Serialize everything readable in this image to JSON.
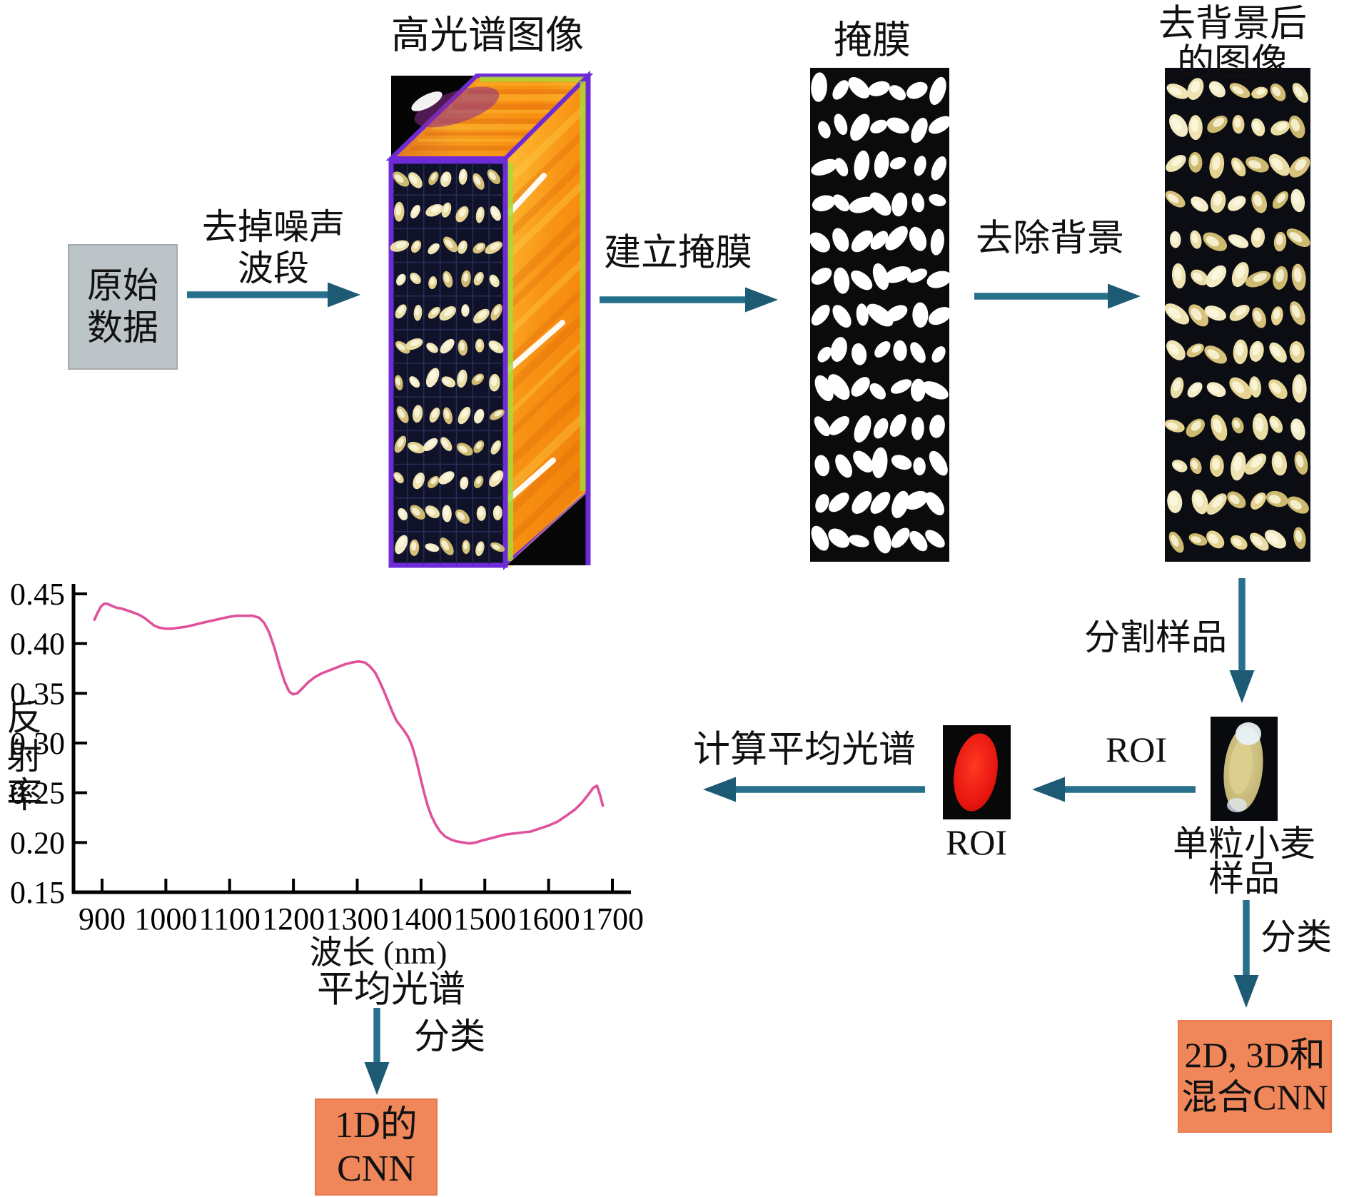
{
  "colors": {
    "arrow": "#27708c",
    "arrow_dark": "#1d5a74",
    "curve": "#e0519b",
    "orange_box": "#f0875a",
    "gray_box": "#bdc4c7",
    "purple_edge": "#6d2bd8",
    "green_edge": "#a8dc35",
    "roi_red": "#e81610",
    "mask_bg": "#0b0b0b",
    "strip_bg": "#0c0d12"
  },
  "flow": {
    "raw_data": {
      "line1": "原始",
      "line2": "数据"
    },
    "remove_noise": {
      "line1": "去掉噪声",
      "line2": "波段"
    },
    "hyperspectral_title": "高光谱图像",
    "build_mask": "建立掩膜",
    "mask_title": "掩膜",
    "remove_background": "去除背景",
    "clean_title": {
      "line1": "去背景后",
      "line2": "的图像"
    },
    "segment": "分割样品",
    "single_grain": {
      "line1": "单粒小麦",
      "line2": "样品"
    },
    "roi_arrow_label": "ROI",
    "roi_caption": "ROI",
    "avg_spectrum_arrow": "计算平均光谱",
    "avg_spectrum_caption": "平均光谱",
    "classify_left": "分类",
    "classify_right": "分类",
    "cnn_1d": {
      "line1": "1D的",
      "line2": "CNN"
    },
    "cnn_2d3d": {
      "line1": "2D, 3D和",
      "line2": "混合CNN"
    }
  },
  "figures": {
    "hyperspectral_cube": {
      "grain_rows": 12,
      "grain_cols": 7
    },
    "mask": {
      "rows": 13,
      "cols": 7
    },
    "background_removed": {
      "rows": 13,
      "cols": 7
    }
  },
  "chart_data": {
    "type": "line",
    "title": "",
    "xlabel": "波长 (nm)",
    "ylabel": "反射率",
    "xlim": [
      850,
      1730
    ],
    "ylim": [
      0.15,
      0.45
    ],
    "xticks": [
      900,
      1000,
      1100,
      1200,
      1300,
      1400,
      1500,
      1600,
      1700
    ],
    "yticks": [
      0.15,
      0.2,
      0.25,
      0.3,
      0.35,
      0.4,
      0.45
    ],
    "grid": false,
    "legend": "none",
    "series": [
      {
        "name": "平均光谱",
        "color": "#e0519b",
        "points": [
          [
            888,
            0.424
          ],
          [
            893,
            0.431
          ],
          [
            898,
            0.437
          ],
          [
            903,
            0.44
          ],
          [
            908,
            0.44
          ],
          [
            915,
            0.438
          ],
          [
            923,
            0.436
          ],
          [
            932,
            0.435
          ],
          [
            941,
            0.433
          ],
          [
            950,
            0.431
          ],
          [
            958,
            0.429
          ],
          [
            966,
            0.426
          ],
          [
            974,
            0.422
          ],
          [
            982,
            0.418
          ],
          [
            990,
            0.416
          ],
          [
            1000,
            0.415
          ],
          [
            1010,
            0.415
          ],
          [
            1020,
            0.416
          ],
          [
            1032,
            0.417
          ],
          [
            1045,
            0.419
          ],
          [
            1058,
            0.421
          ],
          [
            1072,
            0.423
          ],
          [
            1086,
            0.425
          ],
          [
            1100,
            0.427
          ],
          [
            1112,
            0.428
          ],
          [
            1124,
            0.428
          ],
          [
            1136,
            0.428
          ],
          [
            1146,
            0.426
          ],
          [
            1154,
            0.421
          ],
          [
            1162,
            0.411
          ],
          [
            1170,
            0.396
          ],
          [
            1178,
            0.378
          ],
          [
            1186,
            0.362
          ],
          [
            1193,
            0.352
          ],
          [
            1199,
            0.349
          ],
          [
            1206,
            0.35
          ],
          [
            1214,
            0.355
          ],
          [
            1223,
            0.361
          ],
          [
            1233,
            0.366
          ],
          [
            1244,
            0.37
          ],
          [
            1256,
            0.373
          ],
          [
            1268,
            0.376
          ],
          [
            1280,
            0.379
          ],
          [
            1292,
            0.381
          ],
          [
            1302,
            0.382
          ],
          [
            1312,
            0.381
          ],
          [
            1320,
            0.377
          ],
          [
            1328,
            0.371
          ],
          [
            1335,
            0.362
          ],
          [
            1342,
            0.352
          ],
          [
            1349,
            0.341
          ],
          [
            1356,
            0.33
          ],
          [
            1362,
            0.322
          ],
          [
            1368,
            0.317
          ],
          [
            1374,
            0.312
          ],
          [
            1380,
            0.306
          ],
          [
            1386,
            0.297
          ],
          [
            1392,
            0.284
          ],
          [
            1398,
            0.268
          ],
          [
            1404,
            0.252
          ],
          [
            1410,
            0.238
          ],
          [
            1416,
            0.227
          ],
          [
            1423,
            0.218
          ],
          [
            1430,
            0.211
          ],
          [
            1438,
            0.206
          ],
          [
            1447,
            0.203
          ],
          [
            1456,
            0.201
          ],
          [
            1466,
            0.2
          ],
          [
            1476,
            0.199
          ],
          [
            1486,
            0.2
          ],
          [
            1496,
            0.202
          ],
          [
            1508,
            0.204
          ],
          [
            1520,
            0.206
          ],
          [
            1532,
            0.208
          ],
          [
            1545,
            0.209
          ],
          [
            1558,
            0.21
          ],
          [
            1572,
            0.211
          ],
          [
            1586,
            0.214
          ],
          [
            1600,
            0.217
          ],
          [
            1614,
            0.221
          ],
          [
            1628,
            0.227
          ],
          [
            1641,
            0.233
          ],
          [
            1652,
            0.24
          ],
          [
            1662,
            0.248
          ],
          [
            1670,
            0.255
          ],
          [
            1676,
            0.257
          ],
          [
            1681,
            0.247
          ],
          [
            1685,
            0.237
          ]
        ]
      }
    ]
  }
}
